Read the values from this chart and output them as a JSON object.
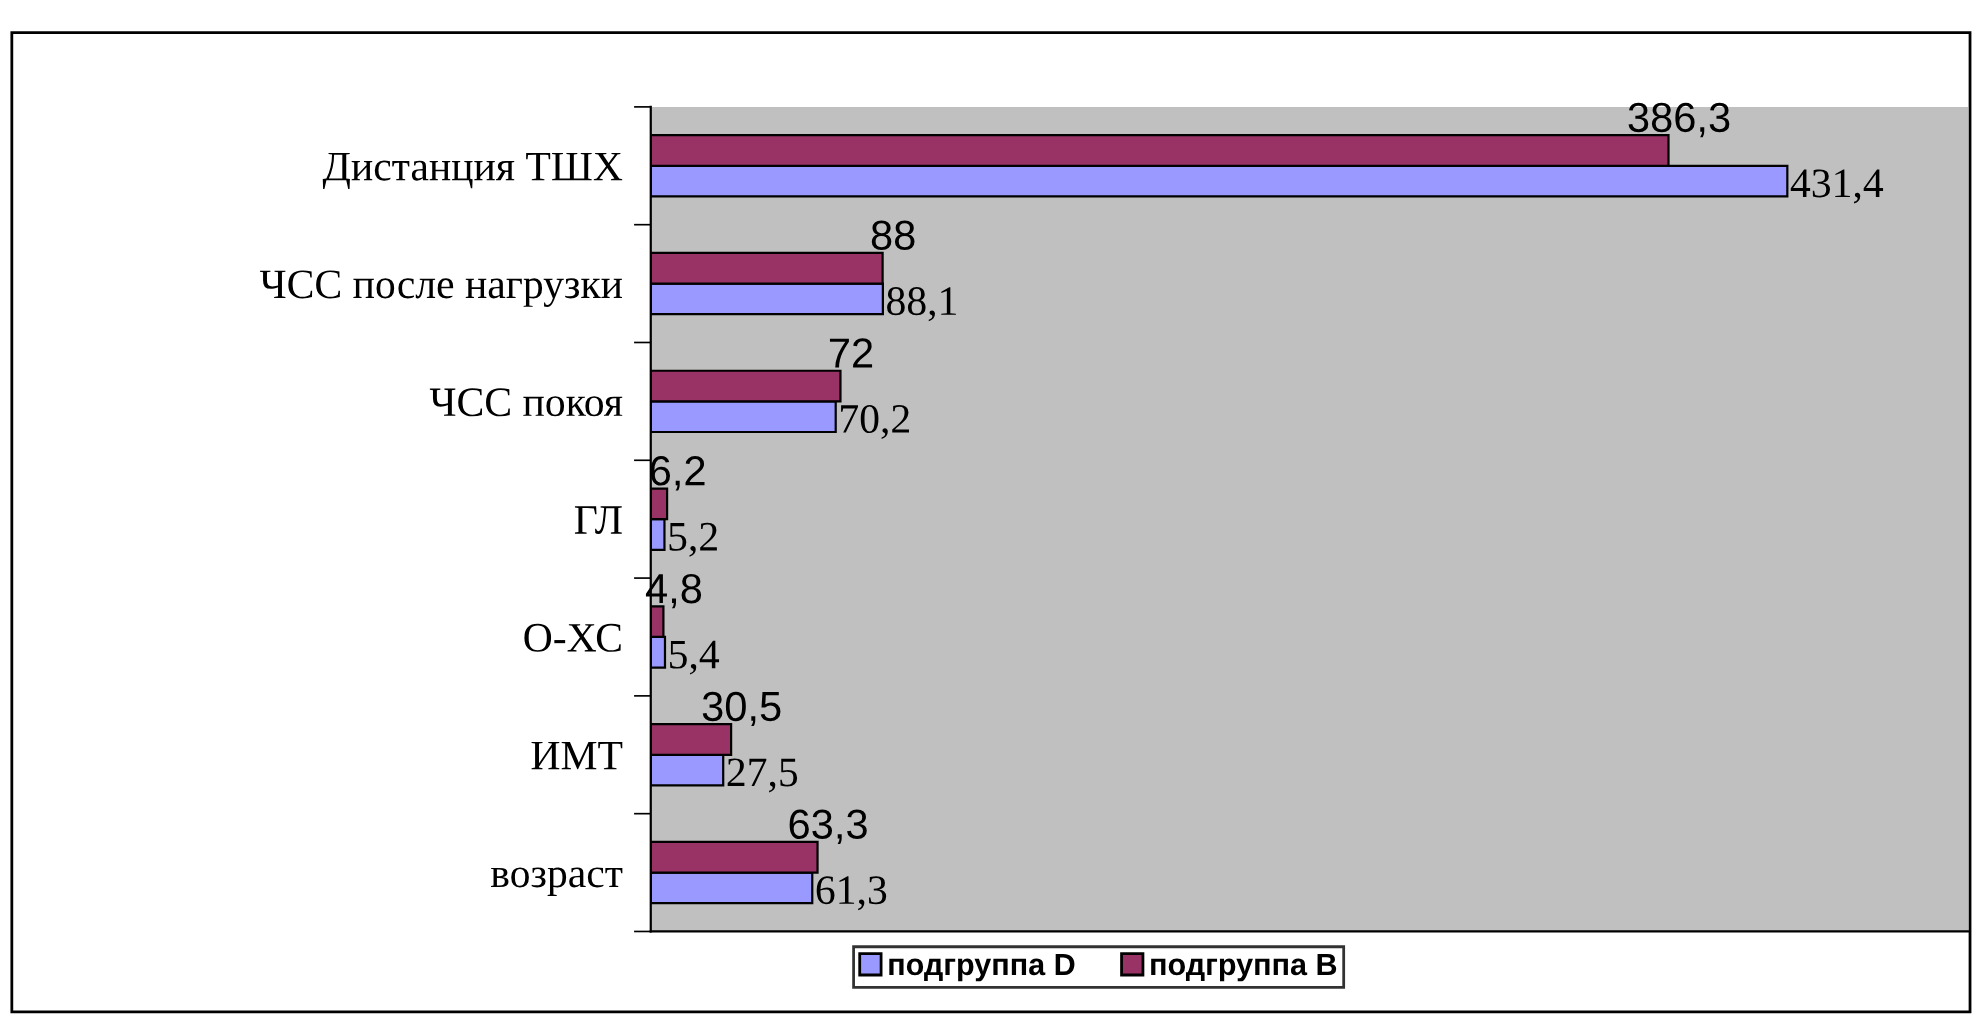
{
  "chart_data": {
    "type": "bar",
    "orientation": "horizontal",
    "categories": [
      "Дистанция ТШХ",
      "ЧСС после нагрузки",
      "ЧСС покоя",
      "ГЛ",
      "О-ХС",
      "ИМТ",
      "возраст"
    ],
    "series": [
      {
        "name": "подгруппа D",
        "color": "#9999ff",
        "values": [
          431.4,
          88.1,
          70.2,
          5.2,
          5.4,
          27.5,
          61.3
        ],
        "value_labels": [
          "431,4",
          "88,1",
          "70,2",
          "5,2",
          "5,4",
          "27,5",
          "61,3"
        ]
      },
      {
        "name": "подгруппа B",
        "color": "#993366",
        "values": [
          386.3,
          88,
          72,
          6.2,
          4.8,
          30.5,
          63.3
        ],
        "value_labels": [
          "386,3",
          "88",
          "72",
          "6,2",
          "4,8",
          "30,5",
          "63,3"
        ]
      }
    ],
    "xlim": [
      0,
      500
    ],
    "grid": false,
    "legend": "bottom"
  }
}
